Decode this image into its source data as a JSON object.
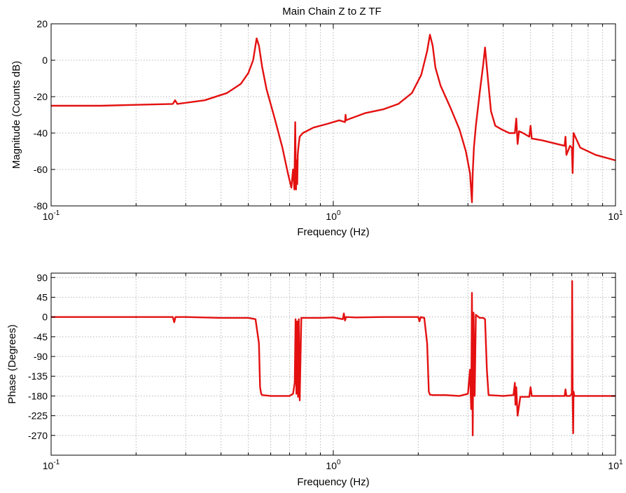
{
  "chart_data": [
    {
      "type": "line",
      "title": "Main Chain Z to Z TF",
      "xlabel": "Frequency (Hz)",
      "ylabel": "Magnitude (Counts dB)",
      "xscale": "log",
      "xlim": [
        0.1,
        10
      ],
      "ylim": [
        -80,
        20
      ],
      "grid": true,
      "x_ticks": [
        {
          "value": 0.1,
          "base": "10",
          "exp": "-1"
        },
        {
          "value": 1,
          "base": "10",
          "exp": "0"
        },
        {
          "value": 10,
          "base": "10",
          "exp": "1"
        }
      ],
      "y_ticks": [
        {
          "value": 20,
          "label": "20"
        },
        {
          "value": 0,
          "label": "0"
        },
        {
          "value": -20,
          "label": "-20"
        },
        {
          "value": -40,
          "label": "-40"
        },
        {
          "value": -60,
          "label": "-60"
        },
        {
          "value": -80,
          "label": "-80"
        }
      ],
      "series": [
        {
          "color": "#e41010",
          "x": [
            0.1,
            0.15,
            0.2,
            0.27,
            0.275,
            0.28,
            0.35,
            0.42,
            0.47,
            0.5,
            0.52,
            0.535,
            0.545,
            0.56,
            0.58,
            0.62,
            0.66,
            0.69,
            0.71,
            0.72,
            0.728,
            0.733,
            0.738,
            0.742,
            0.745,
            0.748,
            0.752,
            0.756,
            0.76,
            0.78,
            0.85,
            0.95,
            1.05,
            1.1,
            1.105,
            1.11,
            1.15,
            1.3,
            1.5,
            1.7,
            1.9,
            2.05,
            2.15,
            2.2,
            2.25,
            2.3,
            2.4,
            2.6,
            2.8,
            2.95,
            3.05,
            3.1,
            3.12,
            3.15,
            3.2,
            3.3,
            3.4,
            3.45,
            3.5,
            3.55,
            3.62,
            3.75,
            3.95,
            4.2,
            4.4,
            4.45,
            4.5,
            4.55,
            4.7,
            4.95,
            5.0,
            5.05,
            5.5,
            6.2,
            6.6,
            6.65,
            6.7,
            6.9,
            7.0,
            7.05,
            7.1,
            7.5,
            8.5,
            10
          ],
          "y": [
            -25,
            -25,
            -24.5,
            -24,
            -22,
            -24,
            -22,
            -18,
            -13,
            -7,
            0,
            12,
            8,
            -4,
            -16,
            -32,
            -48,
            -62,
            -70,
            -60,
            -71,
            -34,
            -71,
            -55,
            -68,
            -52,
            -48,
            -45,
            -42,
            -40,
            -37,
            -35,
            -33,
            -34,
            -30,
            -33,
            -32,
            -29,
            -27,
            -24,
            -18,
            -8,
            5,
            14,
            8,
            -4,
            -14,
            -26,
            -38,
            -50,
            -62,
            -78,
            -62,
            -48,
            -36,
            -18,
            -2,
            7,
            -4,
            -14,
            -28,
            -36,
            -38,
            -40,
            -40,
            -32,
            -46,
            -39,
            -40,
            -42,
            -36,
            -43,
            -44,
            -46,
            -47,
            -42,
            -52,
            -47,
            -48,
            -62,
            -40,
            -48,
            -52,
            -55
          ]
        }
      ]
    },
    {
      "type": "line",
      "title": "",
      "xlabel": "Frequency (Hz)",
      "ylabel": "Phase (Degrees)",
      "xscale": "log",
      "xlim": [
        0.1,
        10
      ],
      "ylim": [
        -315,
        100
      ],
      "grid": true,
      "x_ticks": [
        {
          "value": 0.1,
          "base": "10",
          "exp": "-1"
        },
        {
          "value": 1,
          "base": "10",
          "exp": "0"
        },
        {
          "value": 10,
          "base": "10",
          "exp": "1"
        }
      ],
      "y_ticks": [
        {
          "value": 90,
          "label": "90"
        },
        {
          "value": 45,
          "label": "45"
        },
        {
          "value": 0,
          "label": "0"
        },
        {
          "value": -45,
          "label": "-45"
        },
        {
          "value": -90,
          "label": "-90"
        },
        {
          "value": -135,
          "label": "-135"
        },
        {
          "value": -180,
          "label": "-180"
        },
        {
          "value": -225,
          "label": "-225"
        },
        {
          "value": -270,
          "label": "-270"
        }
      ],
      "series": [
        {
          "color": "#e41010",
          "x": [
            0.1,
            0.2,
            0.27,
            0.273,
            0.276,
            0.3,
            0.4,
            0.5,
            0.53,
            0.545,
            0.55,
            0.555,
            0.56,
            0.6,
            0.7,
            0.72,
            0.73,
            0.735,
            0.74,
            0.745,
            0.75,
            0.755,
            0.76,
            0.77,
            0.8,
            0.9,
            1.0,
            1.08,
            1.09,
            1.1,
            1.11,
            1.2,
            1.5,
            2.0,
            2.02,
            2.04,
            2.1,
            2.15,
            2.18,
            2.2,
            2.25,
            2.5,
            2.8,
            3.0,
            3.05,
            3.08,
            3.1,
            3.12,
            3.14,
            3.17,
            3.2,
            3.3,
            3.4,
            3.45,
            3.5,
            3.55,
            4.0,
            4.35,
            4.4,
            4.42,
            4.45,
            4.5,
            4.6,
            4.95,
            5.0,
            5.05,
            5.5,
            6.2,
            6.6,
            6.65,
            6.7,
            6.9,
            7.0,
            7.02,
            7.05,
            7.08,
            7.1,
            7.15,
            7.5,
            8.5,
            10
          ],
          "y": [
            0,
            0,
            0,
            -12,
            0,
            0,
            -2,
            -2,
            -5,
            -60,
            -160,
            -175,
            -178,
            -180,
            -180,
            -175,
            -150,
            -5,
            -175,
            -10,
            -182,
            -5,
            -190,
            -2,
            -2,
            -2,
            -1,
            -5,
            8,
            -8,
            0,
            -1,
            0,
            0,
            -10,
            0,
            -2,
            -60,
            -170,
            -177,
            -178,
            -178,
            -180,
            -175,
            -120,
            -210,
            55,
            -270,
            10,
            -180,
            5,
            -2,
            -2,
            -5,
            -120,
            -178,
            -180,
            -178,
            -150,
            -200,
            -160,
            -225,
            -182,
            -182,
            -160,
            -180,
            -180,
            -180,
            -180,
            -165,
            -180,
            -180,
            -175,
            82,
            -180,
            -265,
            -170,
            -180,
            -180,
            -180,
            -180
          ]
        }
      ]
    }
  ]
}
